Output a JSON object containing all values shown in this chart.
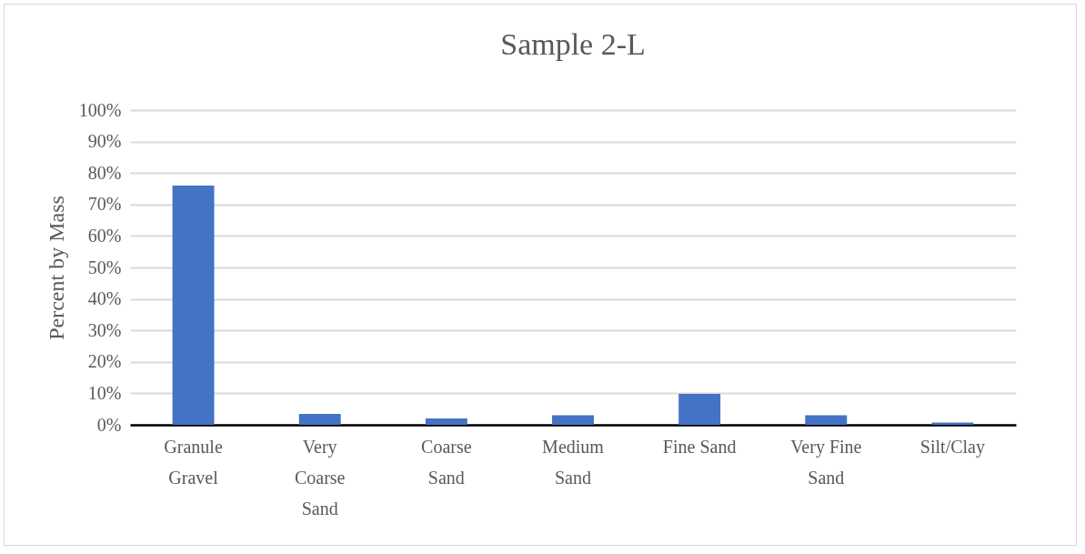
{
  "chart_data": {
    "type": "bar",
    "title": "Sample 2-L",
    "ylabel": "Percent by Mass",
    "categories": [
      "Granule Gravel",
      "Very Coarse Sand",
      "Coarse Sand",
      "Medium Sand",
      "Fine Sand",
      "Very Fine Sand",
      "Silt/Clay"
    ],
    "values": [
      76,
      3.5,
      2,
      3,
      9.8,
      3,
      0.7
    ],
    "color": "#4472c4",
    "ylim": [
      0,
      100
    ],
    "yticks": [
      {
        "value": 0,
        "label": "0%"
      },
      {
        "value": 10,
        "label": "10%"
      },
      {
        "value": 20,
        "label": "20%"
      },
      {
        "value": 30,
        "label": "30%"
      },
      {
        "value": 40,
        "label": "40%"
      },
      {
        "value": 50,
        "label": "50%"
      },
      {
        "value": 60,
        "label": "60%"
      },
      {
        "value": 70,
        "label": "70%"
      },
      {
        "value": 80,
        "label": "80%"
      },
      {
        "value": 90,
        "label": "90%"
      },
      {
        "value": 100,
        "label": "100%"
      }
    ],
    "grid": "y"
  }
}
